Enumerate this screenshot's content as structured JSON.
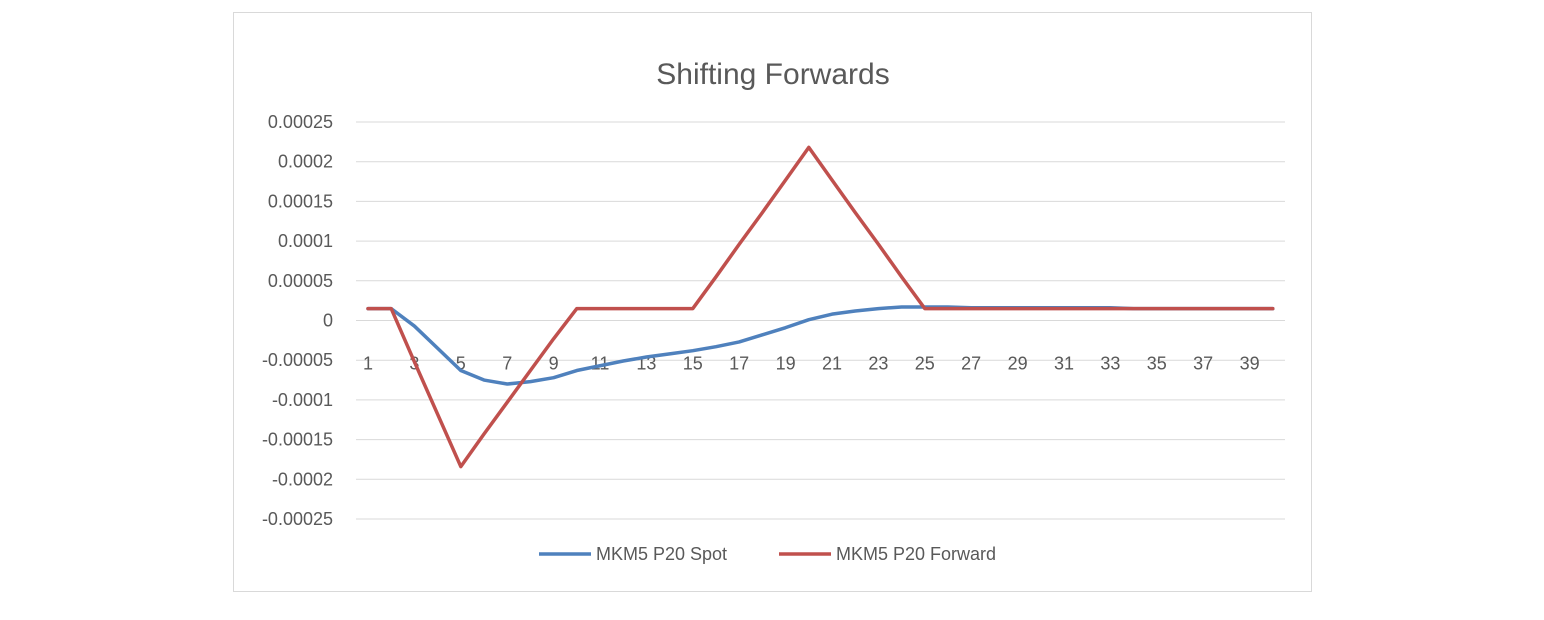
{
  "chart_data": {
    "type": "line",
    "title": "Shifting Forwards",
    "xlabel": "",
    "ylabel": "",
    "x": [
      1,
      2,
      3,
      4,
      5,
      6,
      7,
      8,
      9,
      10,
      11,
      12,
      13,
      14,
      15,
      16,
      17,
      18,
      19,
      20,
      21,
      22,
      23,
      24,
      25,
      26,
      27,
      28,
      29,
      30,
      31,
      32,
      33,
      34,
      35,
      36,
      37,
      38,
      39,
      40
    ],
    "x_tick_labels": [
      "1",
      "3",
      "5",
      "7",
      "9",
      "11",
      "13",
      "15",
      "17",
      "19",
      "21",
      "23",
      "25",
      "27",
      "29",
      "31",
      "33",
      "35",
      "37",
      "39"
    ],
    "y_tick_labels": [
      "0.00025",
      "0.0002",
      "0.00015",
      "0.0001",
      "0.00005",
      "0",
      "-0.00005",
      "-0.0001",
      "-0.00015",
      "-0.0002",
      "-0.00025"
    ],
    "ylim": [
      -0.00025,
      0.00025
    ],
    "grid": true,
    "legend_position": "bottom",
    "series": [
      {
        "name": "MKM5 P20 Spot",
        "color": "#4f81bd",
        "values": [
          1.5e-05,
          1.5e-05,
          -7e-06,
          -3.5e-05,
          -6.3e-05,
          -7.5e-05,
          -8e-05,
          -7.7e-05,
          -7.2e-05,
          -6.3e-05,
          -5.7e-05,
          -5.1e-05,
          -4.6e-05,
          -4.2e-05,
          -3.8e-05,
          -3.3e-05,
          -2.7e-05,
          -1.8e-05,
          -9e-06,
          1e-06,
          8e-06,
          1.2e-05,
          1.5e-05,
          1.7e-05,
          1.7e-05,
          1.7e-05,
          1.6e-05,
          1.6e-05,
          1.6e-05,
          1.6e-05,
          1.6e-05,
          1.6e-05,
          1.6e-05,
          1.5e-05,
          1.5e-05,
          1.5e-05,
          1.5e-05,
          1.5e-05,
          1.5e-05,
          1.5e-05
        ]
      },
      {
        "name": "MKM5 P20 Forward",
        "color": "#c0504d",
        "values": [
          1.5e-05,
          1.5e-05,
          -5.2e-05,
          -0.000118,
          -0.000184,
          -0.000143,
          -0.000103,
          -6.3e-05,
          -2.3e-05,
          1.5e-05,
          1.5e-05,
          1.5e-05,
          1.5e-05,
          1.5e-05,
          1.5e-05,
          5.5e-05,
          9.6e-05,
          0.000136,
          0.000177,
          0.000218,
          0.000177,
          0.000136,
          9.6e-05,
          5.5e-05,
          1.5e-05,
          1.5e-05,
          1.5e-05,
          1.5e-05,
          1.5e-05,
          1.5e-05,
          1.5e-05,
          1.5e-05,
          1.5e-05,
          1.5e-05,
          1.5e-05,
          1.5e-05,
          1.5e-05,
          1.5e-05,
          1.5e-05,
          1.5e-05
        ]
      }
    ]
  }
}
